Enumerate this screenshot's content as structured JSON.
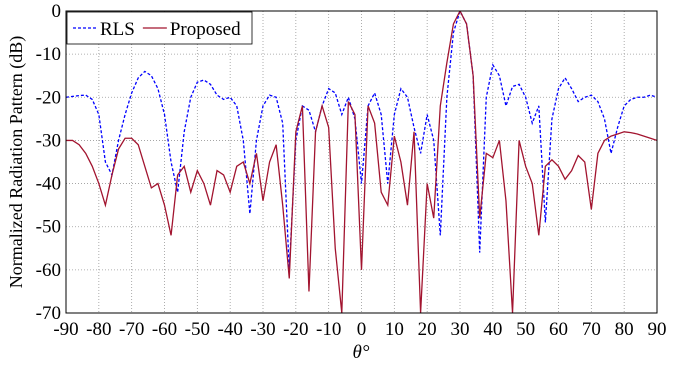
{
  "chart_data": {
    "type": "line",
    "x_label": "θ°",
    "y_label": "Normalized Radiation Pattern (dB)",
    "x": [
      -90,
      -88,
      -86,
      -84,
      -82,
      -80,
      -78,
      -76,
      -74,
      -72,
      -70,
      -68,
      -66,
      -64,
      -62,
      -60,
      -58,
      -56,
      -54,
      -52,
      -50,
      -48,
      -46,
      -44,
      -42,
      -40,
      -38,
      -36,
      -34,
      -32,
      -30,
      -28,
      -26,
      -24,
      -22,
      -20,
      -18,
      -16,
      -14,
      -12,
      -10,
      -8,
      -6,
      -4,
      -2,
      0,
      2,
      4,
      6,
      8,
      10,
      12,
      14,
      16,
      18,
      20,
      22,
      24,
      26,
      28,
      30,
      32,
      34,
      36,
      38,
      40,
      42,
      44,
      46,
      48,
      50,
      52,
      54,
      56,
      58,
      60,
      62,
      64,
      66,
      68,
      70,
      72,
      74,
      76,
      78,
      80,
      82,
      84,
      86,
      88,
      90
    ],
    "series": [
      {
        "name": "RLS",
        "color": "#0000ff",
        "dash": true,
        "values": [
          -20,
          -19.8,
          -19.6,
          -19.5,
          -20.5,
          -24,
          -35,
          -38,
          -30,
          -24,
          -19,
          -15.5,
          -14,
          -15,
          -18,
          -24,
          -35,
          -42,
          -28,
          -20,
          -16.5,
          -16,
          -17,
          -19.5,
          -20.5,
          -20,
          -22,
          -30,
          -47,
          -30,
          -22,
          -19.5,
          -20,
          -26,
          -60,
          -30,
          -22,
          -23,
          -28,
          -22,
          -18,
          -19,
          -24,
          -20,
          -25,
          -40,
          -22,
          -19,
          -24,
          -40,
          -24,
          -18,
          -20,
          -27,
          -33,
          -24,
          -30,
          -52,
          -20,
          -5,
          0,
          -3,
          -15,
          -56,
          -20,
          -12.5,
          -15,
          -22,
          -17.5,
          -17,
          -20,
          -26,
          -22,
          -49,
          -25,
          -18,
          -15.5,
          -18,
          -21,
          -20,
          -19.5,
          -21,
          -25,
          -33,
          -27,
          -22,
          -20.5,
          -20,
          -20,
          -19.5,
          -20
        ]
      },
      {
        "name": "Proposed",
        "color": "#a2142f",
        "dash": false,
        "values": [
          -30,
          -30,
          -31,
          -33,
          -36,
          -40,
          -45,
          -38,
          -32,
          -29.5,
          -29.5,
          -31,
          -36,
          -41,
          -40,
          -45,
          -52,
          -38,
          -36,
          -42,
          -37,
          -40,
          -45,
          -37,
          -38,
          -42,
          -36,
          -35,
          -40,
          -33,
          -44,
          -35,
          -31,
          -45,
          -62,
          -28,
          -22,
          -65,
          -28,
          -22,
          -27,
          -55,
          -70,
          -21,
          -24,
          -60,
          -22,
          -26,
          -42,
          -45,
          -29,
          -35,
          -45,
          -28,
          -70,
          -40,
          -48,
          -22,
          -12,
          -3,
          0,
          -3,
          -15,
          -48,
          -33,
          -34,
          -30,
          -44,
          -70,
          -30,
          -36,
          -40,
          -52,
          -36,
          -34.5,
          -36,
          -39,
          -37,
          -33.5,
          -35,
          -46,
          -33,
          -30,
          -29,
          -28.5,
          -28,
          -28.2,
          -28.5,
          -29,
          -29.5,
          -30
        ]
      }
    ],
    "xlim": [
      -90,
      90
    ],
    "ylim": [
      -70,
      0
    ],
    "xticks": [
      -90,
      -80,
      -70,
      -60,
      -50,
      -40,
      -30,
      -20,
      -10,
      0,
      10,
      20,
      30,
      40,
      50,
      60,
      70,
      80,
      90
    ],
    "yticks": [
      -70,
      -60,
      -50,
      -40,
      -30,
      -20,
      -10,
      0
    ],
    "grid": true,
    "legend": "top-left"
  }
}
